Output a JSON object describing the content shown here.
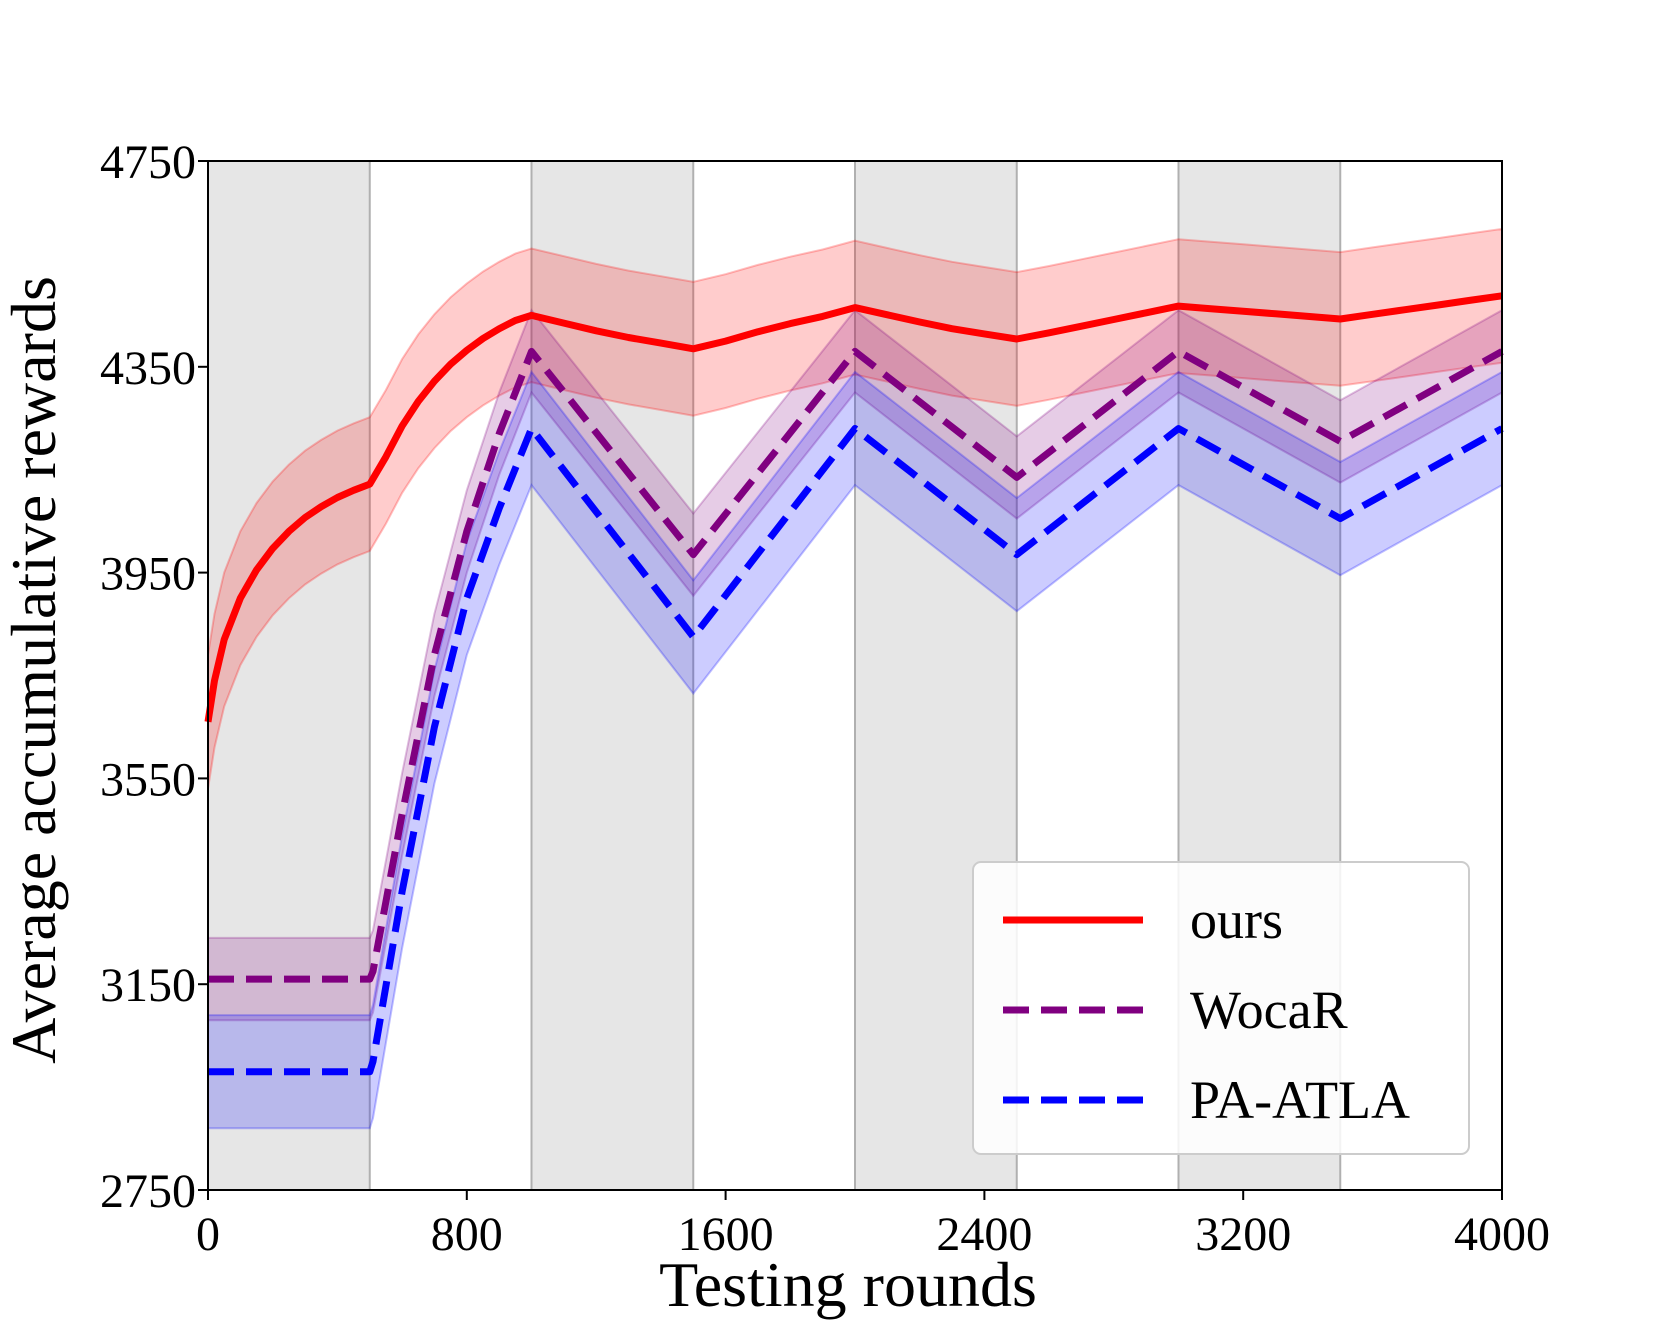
{
  "chart_data": {
    "type": "line",
    "title": "",
    "xlabel": "Testing rounds",
    "ylabel": "Average accumulative rewards",
    "xlim": [
      0,
      4000
    ],
    "ylim": [
      2750,
      4750
    ],
    "xticks": [
      0,
      800,
      1600,
      2400,
      3200,
      4000
    ],
    "yticks": [
      2750,
      3150,
      3550,
      3950,
      4350,
      4750
    ],
    "shaded_intervals": [
      [
        0,
        500
      ],
      [
        1000,
        1500
      ],
      [
        2000,
        2500
      ],
      [
        3000,
        3500
      ]
    ],
    "series": [
      {
        "name": "ours",
        "color": "#ff0000",
        "dash": "solid",
        "x": [
          0,
          20,
          50,
          100,
          150,
          200,
          250,
          300,
          350,
          400,
          450,
          500,
          550,
          600,
          650,
          700,
          750,
          800,
          850,
          900,
          950,
          1000,
          1100,
          1200,
          1300,
          1400,
          1500,
          1600,
          1700,
          1800,
          1900,
          2000,
          2100,
          2200,
          2300,
          2400,
          2500,
          2600,
          2700,
          2800,
          2900,
          3000,
          3100,
          3200,
          3300,
          3400,
          3500,
          3600,
          3700,
          3800,
          3900,
          4000
        ],
        "y": [
          3660,
          3740,
          3820,
          3900,
          3955,
          3997,
          4030,
          4057,
          4078,
          4096,
          4110,
          4122,
          4175,
          4235,
          4283,
          4322,
          4355,
          4382,
          4405,
          4424,
          4440,
          4450,
          4435,
          4420,
          4407,
          4396,
          4385,
          4400,
          4418,
          4434,
          4448,
          4465,
          4451,
          4437,
          4424,
          4414,
          4404,
          4416,
          4429,
          4442,
          4455,
          4468,
          4463,
          4458,
          4453,
          4448,
          4443,
          4452,
          4461,
          4470,
          4479,
          4488
        ],
        "band_width": 130
      },
      {
        "name": "WocaR",
        "color": "#800080",
        "dash": "dashed",
        "x": [
          0,
          500,
          510,
          600,
          700,
          800,
          900,
          1000,
          1500,
          2000,
          2500,
          3000,
          3500,
          4000
        ],
        "y": [
          3160,
          3160,
          3175,
          3480,
          3790,
          4030,
          4220,
          4380,
          3985,
          4380,
          4135,
          4380,
          4205,
          4380
        ],
        "band_width": 80
      },
      {
        "name": "PA-ATLA",
        "color": "#0000ff",
        "dash": "dashed",
        "x": [
          0,
          500,
          510,
          600,
          700,
          800,
          900,
          1000,
          1500,
          2000,
          2500,
          3000,
          3500,
          4000
        ],
        "y": [
          2980,
          2980,
          3000,
          3330,
          3650,
          3900,
          4075,
          4230,
          3825,
          4230,
          3985,
          4230,
          4055,
          4230
        ],
        "band_width": 110
      }
    ],
    "legend": [
      "ours",
      "WocaR",
      "PA-ATLA"
    ],
    "legend_position": "lower-right"
  }
}
